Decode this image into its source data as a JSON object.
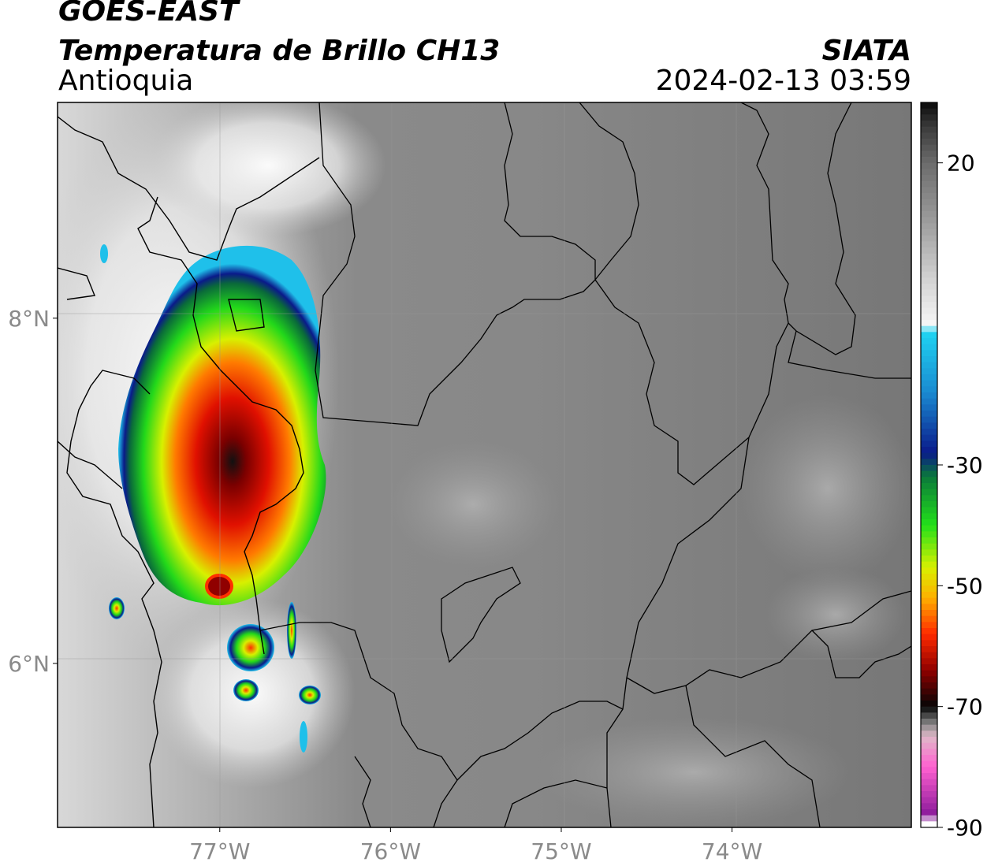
{
  "header": {
    "satellite": "GOES-EAST",
    "product": "Temperatura de Brillo CH13",
    "region": "Antioquia",
    "organization": "SIATA",
    "datetime": "2024-02-13 03:59"
  },
  "map": {
    "lon_range": [
      -77.95,
      -72.95
    ],
    "lat_range": [
      5.05,
      9.25
    ],
    "lon_ticks": [
      {
        "value": -77,
        "label": "77°W"
      },
      {
        "value": -76,
        "label": "76°W"
      },
      {
        "value": -75,
        "label": "75°W"
      },
      {
        "value": -74,
        "label": "74°W"
      }
    ],
    "lat_ticks": [
      {
        "value": 8,
        "label": "8°N"
      },
      {
        "value": 6,
        "label": "6°N"
      }
    ],
    "background_color": "#7a7a7a"
  },
  "colorbar": {
    "range": [
      -90,
      30
    ],
    "ticks": [
      {
        "value": 20,
        "label": "20"
      },
      {
        "value": -30,
        "label": "-30"
      },
      {
        "value": -50,
        "label": "-50"
      },
      {
        "value": -70,
        "label": "-70"
      },
      {
        "value": -90,
        "label": "-90"
      }
    ],
    "stops": [
      {
        "v": 30,
        "c": "#0a0a0a"
      },
      {
        "v": 26,
        "c": "#3a3a3a"
      },
      {
        "v": 20,
        "c": "#6b6b6b"
      },
      {
        "v": 10,
        "c": "#9e9e9e"
      },
      {
        "v": 0,
        "c": "#d6d6d6"
      },
      {
        "v": -7,
        "c": "#f7f7f7"
      },
      {
        "v": -8,
        "c": "#1fd4f2"
      },
      {
        "v": -18,
        "c": "#1a8ad0"
      },
      {
        "v": -28,
        "c": "#0a1a8a"
      },
      {
        "v": -32,
        "c": "#0a7a3a"
      },
      {
        "v": -40,
        "c": "#22e01a"
      },
      {
        "v": -47,
        "c": "#d8f000"
      },
      {
        "v": -52,
        "c": "#ffb000"
      },
      {
        "v": -58,
        "c": "#ff2a00"
      },
      {
        "v": -64,
        "c": "#900000"
      },
      {
        "v": -70,
        "c": "#050505"
      },
      {
        "v": -73,
        "c": "#8a8a8a"
      },
      {
        "v": -75,
        "c": "#e0b8c8"
      },
      {
        "v": -80,
        "c": "#ff60d0"
      },
      {
        "v": -88,
        "c": "#8a1a9a"
      },
      {
        "v": -89,
        "c": "#ffffff"
      }
    ]
  }
}
